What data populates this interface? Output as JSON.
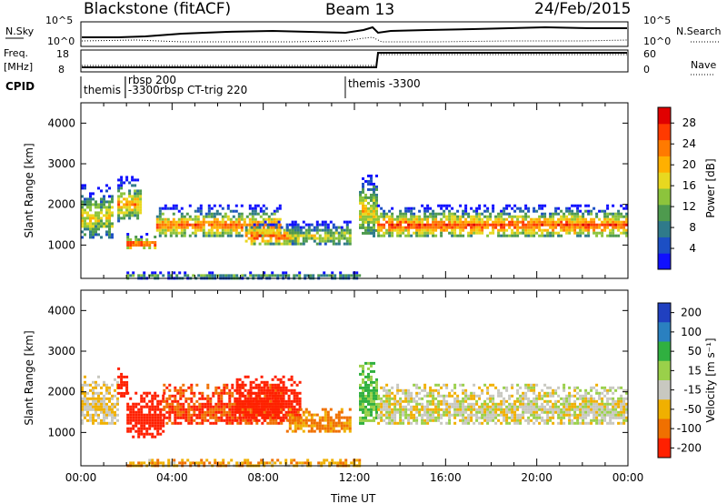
{
  "header": {
    "title": "Blackstone (fitACF)",
    "beam": "Beam 13",
    "date": "24/Feb/2015"
  },
  "summary_panel": {
    "nsky_label": "N.Sky",
    "nsky_ticks": [
      "10^5",
      "10^0"
    ],
    "nsearch_label": "N.Search",
    "nsearch_ticks": [
      "10^5",
      "10^0"
    ],
    "freq_label": "Freq.",
    "freq_unit": "[MHz]",
    "freq_ticks": [
      "18",
      "8"
    ],
    "nave_label": "Nave",
    "nave_ticks": [
      "60",
      "0"
    ],
    "cpid_label": "CPID",
    "cpid_entries": [
      {
        "label": "themis",
        "start": 0.0
      },
      {
        "label": "rbsp 200",
        "start": 1.95
      },
      {
        "label": "-3300rbsp CT-trig 220",
        "start": 1.95
      },
      {
        "label": "themis -3300",
        "start": 11.6
      }
    ]
  },
  "chart_data": [
    {
      "type": "heatmap",
      "panel": "power",
      "xlabel": "",
      "ylabel": "Slant Range [km]",
      "xlim": [
        0,
        24
      ],
      "ylim": [
        180,
        4500
      ],
      "y_ticks": [
        1000,
        2000,
        3000,
        4000
      ],
      "colorbar": {
        "label": "Power [dB]",
        "ticks": [
          4,
          8,
          12,
          16,
          20,
          24,
          28
        ],
        "range": [
          0,
          31
        ],
        "colors": [
          "#1010ff",
          "#1c4fc4",
          "#2f7a8a",
          "#4e9a4e",
          "#8cc43c",
          "#e8d820",
          "#ffb000",
          "#ff7a00",
          "#ff3a00",
          "#e00000"
        ]
      },
      "bands": [
        {
          "x": [
            0.0,
            1.4
          ],
          "y": [
            1200,
            2500
          ],
          "level": 0.6
        },
        {
          "x": [
            1.6,
            2.6
          ],
          "y": [
            1600,
            2700
          ],
          "level": 0.7
        },
        {
          "x": [
            2.0,
            3.3
          ],
          "y": [
            900,
            1300
          ],
          "level": 0.9
        },
        {
          "x": [
            3.3,
            8.8
          ],
          "y": [
            1200,
            2000
          ],
          "level": 0.8
        },
        {
          "x": [
            7.2,
            9.5
          ],
          "y": [
            1000,
            1600
          ],
          "level": 0.85
        },
        {
          "x": [
            9.0,
            11.8
          ],
          "y": [
            1000,
            1600
          ],
          "level": 0.55
        },
        {
          "x": [
            12.2,
            13.0
          ],
          "y": [
            1200,
            2800
          ],
          "level": 0.6
        },
        {
          "x": [
            13.0,
            24.0
          ],
          "y": [
            1200,
            2000
          ],
          "level": 0.85
        },
        {
          "x": [
            2.0,
            12.2
          ],
          "y": [
            200,
            350
          ],
          "level": 0.45
        }
      ]
    },
    {
      "type": "heatmap",
      "panel": "velocity",
      "xlabel": "Time UT",
      "ylabel": "Slant Range [km]",
      "xlim": [
        0,
        24
      ],
      "ylim": [
        180,
        4500
      ],
      "y_ticks": [
        1000,
        2000,
        3000,
        4000
      ],
      "x_ticks": [
        "00:00",
        "04:00",
        "08:00",
        "12:00",
        "16:00",
        "20:00",
        "00:00"
      ],
      "colorbar": {
        "label": "Velocity [m s⁻¹]",
        "ticks": [
          200,
          100,
          50,
          15,
          -15,
          -50,
          -100,
          -200
        ],
        "colors": [
          "#2040c0",
          "#2a80c0",
          "#30b040",
          "#9ad04a",
          "#c8c8c0",
          "#f0b000",
          "#f07000",
          "#ff2000"
        ]
      },
      "bands": [
        {
          "x": [
            0.0,
            1.6
          ],
          "y": [
            1200,
            2400
          ],
          "vel": -15
        },
        {
          "x": [
            1.6,
            2.0
          ],
          "y": [
            1900,
            2600
          ],
          "vel": -200
        },
        {
          "x": [
            2.0,
            3.6
          ],
          "y": [
            900,
            2000
          ],
          "vel": -200
        },
        {
          "x": [
            3.6,
            8.8
          ],
          "y": [
            1200,
            2200
          ],
          "vel": -100
        },
        {
          "x": [
            6.8,
            9.6
          ],
          "y": [
            1300,
            2400
          ],
          "vel": -150
        },
        {
          "x": [
            9.0,
            11.8
          ],
          "y": [
            1000,
            1600
          ],
          "vel": -60
        },
        {
          "x": [
            12.2,
            13.0
          ],
          "y": [
            1200,
            2800
          ],
          "vel": 60
        },
        {
          "x": [
            13.0,
            24.0
          ],
          "y": [
            1200,
            2200
          ],
          "vel": 0
        },
        {
          "x": [
            2.0,
            12.2
          ],
          "y": [
            200,
            350
          ],
          "vel": -40
        }
      ]
    }
  ]
}
